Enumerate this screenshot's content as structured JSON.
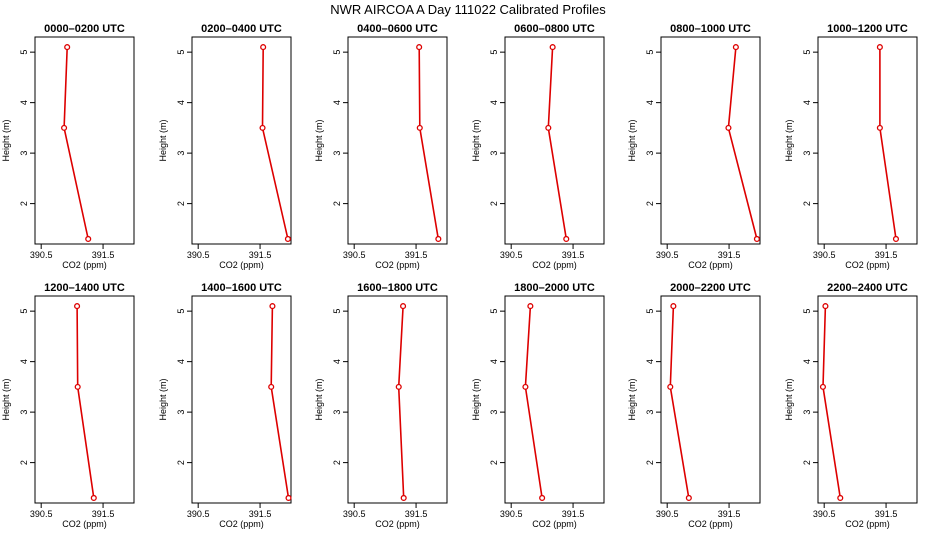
{
  "title": "NWR AIRCOA A  Day 111022  Calibrated Profiles",
  "chart_data": {
    "type": "line",
    "xlabel": "CO2 (ppm)",
    "ylabel": "Height (m)",
    "xlim": [
      390.4,
      392.0
    ],
    "ylim": [
      1.2,
      5.3
    ],
    "xticks": [
      390.5,
      391.5
    ],
    "yticks": [
      2,
      3,
      4,
      5
    ],
    "line_color": "#dd0000",
    "heights": [
      5.1,
      3.5,
      1.3
    ],
    "panels": [
      {
        "title": "0000–0200 UTC",
        "co2": [
          390.92,
          390.87,
          391.26
        ]
      },
      {
        "title": "0200–0400 UTC",
        "co2": [
          391.55,
          391.54,
          391.95
        ]
      },
      {
        "title": "0400–0600 UTC",
        "co2": [
          391.55,
          391.56,
          391.86
        ]
      },
      {
        "title": "0600–0800 UTC",
        "co2": [
          391.17,
          391.1,
          391.39
        ]
      },
      {
        "title": "0800–1000 UTC",
        "co2": [
          391.61,
          391.49,
          391.95
        ]
      },
      {
        "title": "1000–1200 UTC",
        "co2": [
          391.4,
          391.4,
          391.66
        ]
      },
      {
        "title": "1200–1400 UTC",
        "co2": [
          391.08,
          391.09,
          391.35
        ]
      },
      {
        "title": "1400–1600 UTC",
        "co2": [
          391.7,
          391.68,
          391.96
        ]
      },
      {
        "title": "1600–1800 UTC",
        "co2": [
          391.29,
          391.22,
          391.3
        ]
      },
      {
        "title": "1800–2000 UTC",
        "co2": [
          390.81,
          390.73,
          391.0
        ]
      },
      {
        "title": "2000–2200 UTC",
        "co2": [
          390.6,
          390.55,
          390.85
        ]
      },
      {
        "title": "2200–2400 UTC",
        "co2": [
          390.52,
          390.48,
          390.76
        ]
      }
    ]
  }
}
